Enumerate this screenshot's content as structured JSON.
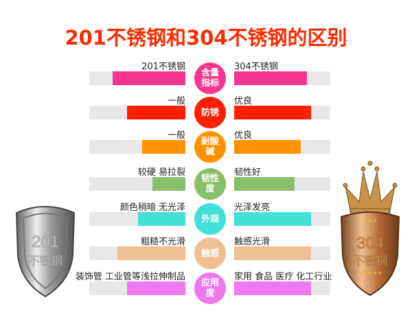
{
  "title": "201不锈钢和304不锈钢的区别",
  "rows": [
    {
      "category": "含量指标",
      "left": "201不锈钢",
      "right": "304不锈钢",
      "left_pct": 76,
      "right_pct": 76,
      "color": "#f7358e"
    },
    {
      "category": "防锈",
      "left": "一般",
      "right": "优良",
      "left_pct": 61,
      "right_pct": 80,
      "color": "#fe2000"
    },
    {
      "category": "耐酸碱",
      "left": "一般",
      "right": "优良",
      "left_pct": 45,
      "right_pct": 69,
      "color": "#fe9200"
    },
    {
      "category": "韧性度",
      "left": "较硬 易拉裂",
      "right": "韧性好",
      "left_pct": 34,
      "right_pct": 63,
      "color": "#88bf6a"
    },
    {
      "category": "外观",
      "left": "颜色稍暗 无光泽",
      "right": "光泽发亮",
      "left_pct": 49,
      "right_pct": 80,
      "color": "#43e0d8"
    },
    {
      "category": "触感",
      "left": "粗糙不光滑",
      "right": "触感光滑",
      "left_pct": 71,
      "right_pct": 80,
      "color": "#eebf93"
    },
    {
      "category": "应用度",
      "left": "装饰管 工业管等浅拉伸制品",
      "right": "家用 食品 医疗 化工行业",
      "left_pct": 61,
      "right_pct": 80,
      "color": "#ee78ee"
    }
  ],
  "shields": {
    "left": {
      "number": "201",
      "text": "不锈钢",
      "color": "#b8b8b8"
    },
    "right": {
      "number": "304",
      "text": "不锈钢",
      "color": "#c8824a"
    }
  }
}
